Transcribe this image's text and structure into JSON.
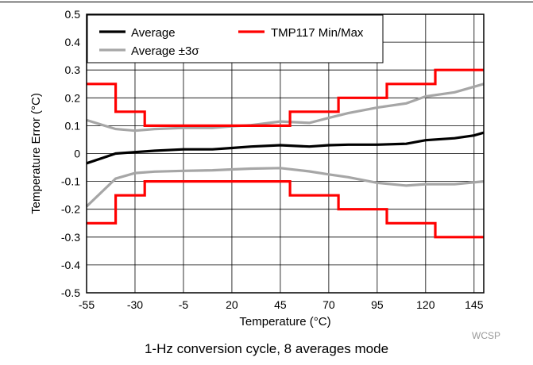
{
  "chart_data": {
    "type": "line",
    "title": "",
    "xlabel": "Temperature (°C)",
    "ylabel": "Temperature Error (°C)",
    "xlim": [
      -55,
      150
    ],
    "ylim": [
      -0.5,
      0.5
    ],
    "x_ticks": [
      -55,
      -30,
      -5,
      20,
      45,
      70,
      95,
      120,
      145
    ],
    "x_tick_labels": [
      "-55",
      "-30",
      "-5",
      "20",
      "45",
      "70",
      "95",
      "120",
      "145"
    ],
    "y_ticks": [
      -0.5,
      -0.4,
      -0.3,
      -0.2,
      -0.1,
      0,
      0.1,
      0.2,
      0.3,
      0.4,
      0.5
    ],
    "y_tick_labels": [
      "-0.5",
      "-0.4",
      "-0.3",
      "-0.2",
      "-0.1",
      "0",
      "0.1",
      "0.2",
      "0.3",
      "0.4",
      "0.5"
    ],
    "grid": true,
    "legend_position": "top-left",
    "series": [
      {
        "name": "Average",
        "color": "#000000",
        "style": "line",
        "points": [
          [
            -55,
            -0.035
          ],
          [
            -40,
            0.0
          ],
          [
            -30,
            0.005
          ],
          [
            -20,
            0.01
          ],
          [
            -5,
            0.015
          ],
          [
            10,
            0.015
          ],
          [
            20,
            0.02
          ],
          [
            30,
            0.025
          ],
          [
            45,
            0.03
          ],
          [
            60,
            0.025
          ],
          [
            70,
            0.03
          ],
          [
            80,
            0.032
          ],
          [
            95,
            0.032
          ],
          [
            110,
            0.035
          ],
          [
            120,
            0.048
          ],
          [
            135,
            0.055
          ],
          [
            145,
            0.065
          ],
          [
            150,
            0.075
          ]
        ]
      },
      {
        "name": "Average ±3σ",
        "color": "#a6a6a6",
        "style": "line",
        "points": [
          [
            -55,
            0.12
          ],
          [
            -40,
            0.088
          ],
          [
            -30,
            0.082
          ],
          [
            -20,
            0.088
          ],
          [
            -5,
            0.092
          ],
          [
            10,
            0.092
          ],
          [
            20,
            0.098
          ],
          [
            30,
            0.102
          ],
          [
            45,
            0.115
          ],
          [
            60,
            0.11
          ],
          [
            70,
            0.128
          ],
          [
            80,
            0.145
          ],
          [
            95,
            0.165
          ],
          [
            110,
            0.18
          ],
          [
            120,
            0.205
          ],
          [
            135,
            0.22
          ],
          [
            150,
            0.25
          ]
        ]
      },
      {
        "name": "",
        "color": "#a6a6a6",
        "style": "line",
        "points": [
          [
            -55,
            -0.19
          ],
          [
            -40,
            -0.09
          ],
          [
            -30,
            -0.07
          ],
          [
            -20,
            -0.065
          ],
          [
            -5,
            -0.062
          ],
          [
            10,
            -0.06
          ],
          [
            20,
            -0.057
          ],
          [
            30,
            -0.054
          ],
          [
            45,
            -0.052
          ],
          [
            60,
            -0.064
          ],
          [
            70,
            -0.075
          ],
          [
            80,
            -0.085
          ],
          [
            95,
            -0.105
          ],
          [
            110,
            -0.115
          ],
          [
            120,
            -0.11
          ],
          [
            135,
            -0.11
          ],
          [
            150,
            -0.1
          ]
        ]
      },
      {
        "name": "TMP117 Min/Max",
        "color": "#ff0000",
        "style": "step",
        "points": [
          [
            -55,
            0.25
          ],
          [
            -40,
            0.25
          ],
          [
            -40,
            0.15
          ],
          [
            -25,
            0.15
          ],
          [
            -25,
            0.1
          ],
          [
            50,
            0.1
          ],
          [
            50,
            0.15
          ],
          [
            75,
            0.15
          ],
          [
            75,
            0.2
          ],
          [
            100,
            0.2
          ],
          [
            100,
            0.25
          ],
          [
            125,
            0.25
          ],
          [
            125,
            0.3
          ],
          [
            150,
            0.3
          ]
        ]
      },
      {
        "name": "",
        "color": "#ff0000",
        "style": "step",
        "points": [
          [
            -55,
            -0.25
          ],
          [
            -40,
            -0.25
          ],
          [
            -40,
            -0.15
          ],
          [
            -25,
            -0.15
          ],
          [
            -25,
            -0.1
          ],
          [
            50,
            -0.1
          ],
          [
            50,
            -0.15
          ],
          [
            75,
            -0.15
          ],
          [
            75,
            -0.2
          ],
          [
            100,
            -0.2
          ],
          [
            100,
            -0.25
          ],
          [
            125,
            -0.25
          ],
          [
            125,
            -0.3
          ],
          [
            150,
            -0.3
          ]
        ]
      }
    ],
    "legend": [
      {
        "label": "Average",
        "color": "#000000"
      },
      {
        "label": "TMP117 Min/Max",
        "color": "#ff0000"
      },
      {
        "label": "Average ±3σ",
        "color": "#a6a6a6"
      }
    ]
  },
  "watermark": "WCSP",
  "caption": "1-Hz conversion cycle, 8 averages mode"
}
